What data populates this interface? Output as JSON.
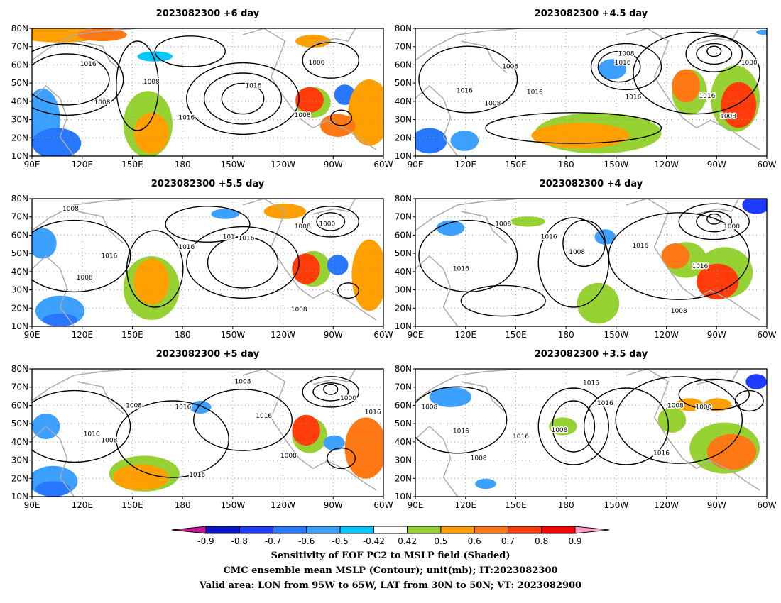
{
  "panels": [
    {
      "id": "p1",
      "title": "2023082300  +6  day"
    },
    {
      "id": "p2",
      "title": "2023082300  +4.5  day"
    },
    {
      "id": "p3",
      "title": "2023082300  +5.5  day"
    },
    {
      "id": "p4",
      "title": "2023082300  +4  day"
    },
    {
      "id": "p5",
      "title": "2023082300  +5  day"
    },
    {
      "id": "p6",
      "title": "2023082300  +3.5  day"
    }
  ],
  "axes": {
    "lat_ticks": [
      "80N",
      "70N",
      "60N",
      "50N",
      "40N",
      "30N",
      "20N",
      "10N"
    ],
    "lon_ticks": [
      "90E",
      "120E",
      "150E",
      "180",
      "150W",
      "120W",
      "90W",
      "60W"
    ],
    "lat_range": [
      10,
      80
    ],
    "lon_range_east": [
      90,
      300
    ]
  },
  "contour_labels": [
    "1016",
    "1008",
    "1000",
    "101"
  ],
  "colorbar": {
    "labels": [
      "-0.9",
      "-0.8",
      "-0.7",
      "-0.6",
      "-0.5",
      "-0.42",
      "0.42",
      "0.5",
      "0.6",
      "0.7",
      "0.8",
      "0.9"
    ],
    "colors": [
      "#0a14c8",
      "#1e3cff",
      "#2878ff",
      "#3ca0ff",
      "#00c8ff",
      "#ffffff",
      "#96d232",
      "#ffa000",
      "#ff7814",
      "#ff3c0a",
      "#ff0000"
    ],
    "low_extend_color": "#c8169a",
    "high_extend_color": "#ffa0c8"
  },
  "caption": {
    "line1": "Sensitivity of EOF PC2 to MSLP field (Shaded)",
    "line2": "CMC ensemble mean MSLP (Contour); unit(mb); IT:2023082300",
    "line3": "Valid area: LON from 95W to 65W, LAT from 30N to 50N; VT: 2023082900"
  }
}
